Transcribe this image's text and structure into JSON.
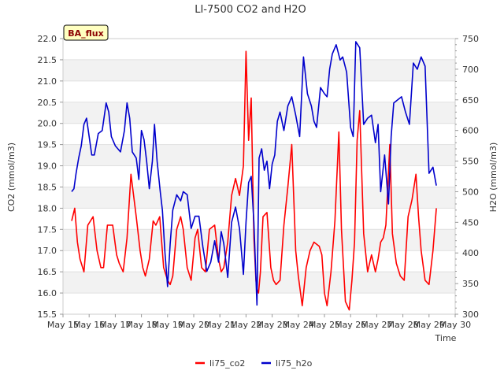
{
  "chart_data": {
    "type": "line",
    "title": "LI-7500 CO2 and H2O",
    "xlabel": "Time",
    "ylabel_left": "CO2 (mmol/m3)",
    "ylabel_right": "H2O (mmol/m3)",
    "badge": "BA_flux",
    "x_ticks": [
      "May 15",
      "May 16",
      "May 17",
      "May 18",
      "May 19",
      "May 20",
      "May 21",
      "May 22",
      "May 23",
      "May 24",
      "May 25",
      "May 26",
      "May 27",
      "May 28",
      "May 29",
      "May 30"
    ],
    "xlim": [
      15,
      30
    ],
    "ylim_left": [
      15.5,
      22.0
    ],
    "yticks_left": [
      "15.5",
      "16.0",
      "16.5",
      "17.0",
      "17.5",
      "18.0",
      "18.5",
      "19.0",
      "19.5",
      "20.0",
      "20.5",
      "21.0",
      "21.5",
      "22.0"
    ],
    "ylim_right": [
      300,
      750
    ],
    "yticks_right": [
      "300",
      "350",
      "400",
      "450",
      "500",
      "550",
      "600",
      "650",
      "700",
      "750"
    ],
    "grid": true,
    "legend_position": "bottom",
    "colors": {
      "li75_co2": "#ff0000",
      "li75_h2o": "#0000cc",
      "band": "#f2f2f2"
    },
    "series": [
      {
        "name": "li75_co2",
        "axis": "left",
        "x": [
          15.33,
          15.45,
          15.55,
          15.65,
          15.8,
          15.95,
          16.05,
          16.15,
          16.3,
          16.45,
          16.55,
          16.7,
          16.9,
          17.05,
          17.15,
          17.3,
          17.45,
          17.6,
          17.8,
          17.95,
          18.05,
          18.15,
          18.3,
          18.45,
          18.55,
          18.7,
          18.85,
          19.0,
          19.1,
          19.2,
          19.35,
          19.5,
          19.6,
          19.75,
          19.9,
          20.05,
          20.15,
          20.3,
          20.45,
          20.6,
          20.8,
          20.95,
          21.05,
          21.15,
          21.3,
          21.45,
          21.6,
          21.75,
          21.9,
          22.0,
          22.1,
          22.2,
          22.3,
          22.38,
          22.42,
          22.48,
          22.55,
          22.65,
          22.8,
          22.95,
          23.05,
          23.15,
          23.3,
          23.45,
          23.6,
          23.75,
          23.9,
          24.0,
          24.15,
          24.3,
          24.45,
          24.6,
          24.8,
          24.9,
          25.0,
          25.1,
          25.25,
          25.4,
          25.55,
          25.65,
          25.8,
          25.95,
          26.05,
          26.15,
          26.25,
          26.35,
          26.5,
          26.65,
          26.8,
          26.95,
          27.05,
          27.15,
          27.25,
          27.35,
          27.5,
          27.6,
          27.75,
          27.9,
          28.05,
          28.2,
          28.35,
          28.5,
          28.6,
          28.7,
          28.85,
          29.0,
          29.15,
          29.28
        ],
        "values": [
          17.7,
          18.0,
          17.2,
          16.8,
          16.5,
          17.6,
          17.7,
          17.8,
          17.0,
          16.6,
          16.6,
          17.6,
          17.6,
          16.9,
          16.7,
          16.5,
          17.3,
          18.8,
          17.8,
          17.0,
          16.6,
          16.4,
          16.8,
          17.7,
          17.6,
          17.8,
          16.6,
          16.3,
          16.2,
          16.4,
          17.5,
          17.8,
          17.5,
          16.6,
          16.3,
          17.3,
          17.5,
          16.6,
          16.5,
          17.5,
          17.6,
          16.8,
          16.5,
          16.6,
          17.2,
          18.3,
          18.7,
          18.3,
          19.0,
          21.7,
          19.6,
          20.6,
          17.3,
          16.3,
          16.1,
          16.0,
          16.5,
          17.8,
          17.9,
          16.6,
          16.3,
          16.2,
          16.3,
          17.6,
          18.5,
          19.5,
          17.0,
          16.4,
          15.7,
          16.6,
          17.0,
          17.2,
          17.1,
          16.9,
          16.0,
          15.7,
          16.5,
          17.7,
          19.8,
          17.5,
          15.8,
          15.6,
          16.3,
          17.2,
          19.6,
          20.3,
          17.4,
          16.5,
          16.9,
          16.5,
          16.8,
          17.2,
          17.3,
          17.6,
          19.5,
          17.4,
          16.7,
          16.4,
          16.3,
          17.8,
          18.2,
          18.8,
          17.8,
          17.0,
          16.3,
          16.2,
          17.0,
          18.0
        ]
      },
      {
        "name": "li75_h2o",
        "axis": "right",
        "x": [
          15.33,
          15.42,
          15.5,
          15.6,
          15.7,
          15.8,
          15.9,
          16.0,
          16.1,
          16.2,
          16.35,
          16.5,
          16.65,
          16.75,
          16.85,
          17.0,
          17.1,
          17.2,
          17.35,
          17.45,
          17.55,
          17.65,
          17.8,
          17.9,
          18.0,
          18.1,
          18.2,
          18.3,
          18.42,
          18.5,
          18.6,
          18.72,
          18.8,
          18.9,
          19.0,
          19.1,
          19.2,
          19.35,
          19.5,
          19.6,
          19.75,
          19.9,
          20.05,
          20.2,
          20.35,
          20.5,
          20.65,
          20.8,
          20.95,
          21.05,
          21.15,
          21.3,
          21.45,
          21.6,
          21.75,
          21.9,
          22.0,
          22.1,
          22.2,
          22.3,
          22.42,
          22.5,
          22.6,
          22.7,
          22.8,
          22.9,
          23.0,
          23.1,
          23.2,
          23.3,
          23.45,
          23.6,
          23.75,
          23.9,
          24.05,
          24.2,
          24.35,
          24.5,
          24.6,
          24.7,
          24.85,
          25.0,
          25.1,
          25.2,
          25.3,
          25.45,
          25.6,
          25.7,
          25.85,
          26.0,
          26.1,
          26.2,
          26.35,
          26.5,
          26.65,
          26.8,
          26.95,
          27.05,
          27.15,
          27.3,
          27.45,
          27.55,
          27.65,
          27.8,
          27.95,
          28.1,
          28.25,
          28.4,
          28.55,
          28.7,
          28.85,
          29.0,
          29.15,
          29.28
        ],
        "values": [
          500,
          505,
          530,
          555,
          575,
          610,
          620,
          590,
          560,
          560,
          595,
          600,
          645,
          630,
          590,
          575,
          570,
          565,
          600,
          645,
          620,
          565,
          555,
          520,
          600,
          585,
          550,
          505,
          550,
          610,
          550,
          500,
          470,
          400,
          345,
          415,
          470,
          495,
          485,
          500,
          495,
          440,
          460,
          460,
          410,
          370,
          385,
          420,
          385,
          435,
          415,
          360,
          450,
          475,
          440,
          365,
          450,
          515,
          525,
          450,
          315,
          555,
          570,
          535,
          550,
          505,
          545,
          560,
          615,
          630,
          600,
          640,
          655,
          625,
          590,
          720,
          660,
          640,
          615,
          605,
          670,
          660,
          655,
          700,
          725,
          740,
          715,
          720,
          695,
          605,
          590,
          745,
          735,
          610,
          620,
          625,
          580,
          610,
          500,
          560,
          480,
          590,
          645,
          650,
          655,
          630,
          610,
          710,
          700,
          720,
          705,
          530,
          540,
          510
        ]
      }
    ]
  }
}
